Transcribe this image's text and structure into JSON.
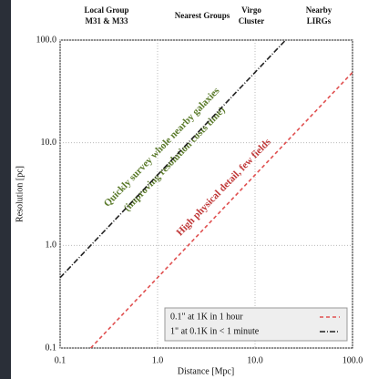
{
  "chart_data": {
    "type": "line",
    "top_labels": [
      "Local Group",
      "M31 & M33",
      "Nearest Groups",
      "Virgo",
      "Cluster",
      "Nearby",
      "LIRGs"
    ],
    "xlabel": "Distance [Mpc]",
    "ylabel": "Resolution [pc]",
    "annotations": [
      "Quickly survey whole nearby galaxies",
      "(improving resolution costs time)",
      "High physical detail, few fields"
    ],
    "xscale": "log",
    "yscale": "log",
    "grid": true,
    "legend": "lower right",
    "xlim": [
      0.1,
      100
    ],
    "ylim": [
      0.1,
      100
    ],
    "xticks": [
      0.1,
      {
        "value": 1,
        "label": "1.0"
      },
      {
        "value": 10,
        "label": "10.0"
      },
      {
        "value": 100,
        "label": "100.0"
      }
    ],
    "yticks": [
      0.1,
      {
        "value": 1,
        "label": "1.0"
      },
      {
        "value": 10,
        "label": "10.0"
      },
      {
        "value": 100,
        "label": "100.0"
      }
    ],
    "series": [
      {
        "name": "0.1\" at 1K in 1 hour",
        "color": "#e05050",
        "dash": "4 3",
        "x": [
          0.206,
          100
        ],
        "values": [
          0.1,
          48.5
        ]
      },
      {
        "name": "1\" at 0.1K in < 1 minute",
        "color": "#222222",
        "dash": "6 2 1 2",
        "x": [
          0.1,
          20.6
        ],
        "values": [
          0.485,
          100
        ]
      }
    ]
  }
}
